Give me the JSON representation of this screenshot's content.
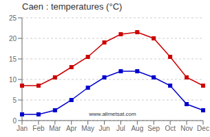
{
  "chart_data": {
    "type": "line",
    "title": "Caen : temperatures (°C)",
    "categories": [
      "Jan",
      "Feb",
      "Mar",
      "Apr",
      "May",
      "Jun",
      "Jul",
      "Aug",
      "Sep",
      "Oct",
      "Nov",
      "Dec"
    ],
    "series": [
      {
        "color": "#cc0000",
        "marker": "square",
        "values": [
          8.5,
          8.5,
          10.5,
          13.0,
          15.5,
          19.0,
          21.0,
          21.5,
          20.0,
          15.5,
          10.5,
          8.5
        ]
      },
      {
        "color": "#0000cc",
        "marker": "square",
        "values": [
          1.5,
          1.5,
          2.5,
          5.0,
          8.0,
          10.5,
          12.0,
          12.0,
          10.5,
          8.5,
          4.0,
          2.5
        ]
      }
    ],
    "ylim": [
      0,
      25
    ],
    "yticks": [
      0,
      5,
      10,
      15,
      20,
      25
    ],
    "grid": "y",
    "annotations": [
      "www.allmetsat.com"
    ]
  }
}
